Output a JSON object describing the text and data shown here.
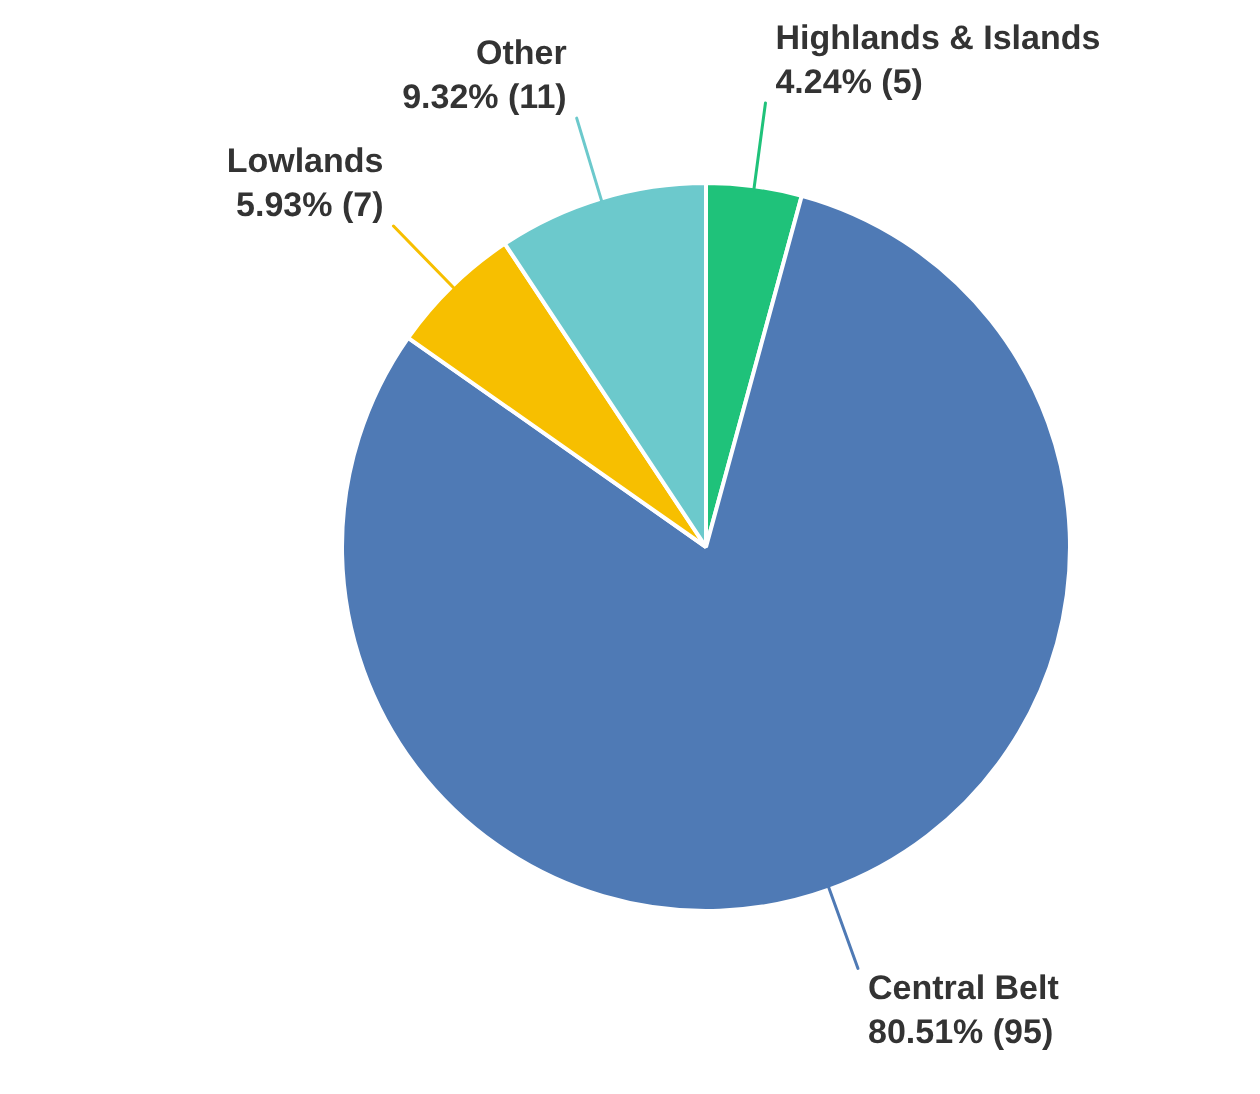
{
  "chart_data": {
    "type": "pie",
    "categories": [
      "Highlands & Islands",
      "Central Belt",
      "Lowlands",
      "Other"
    ],
    "values": [
      5,
      95,
      7,
      11
    ],
    "value_labels": [
      "4.24% (5)",
      "80.51% (95)",
      "5.93% (7)",
      "9.32% (11)"
    ],
    "colors": [
      "#1fc27a",
      "#4f7ab5",
      "#f7bf00",
      "#6cc9cc"
    ],
    "legend": false
  }
}
